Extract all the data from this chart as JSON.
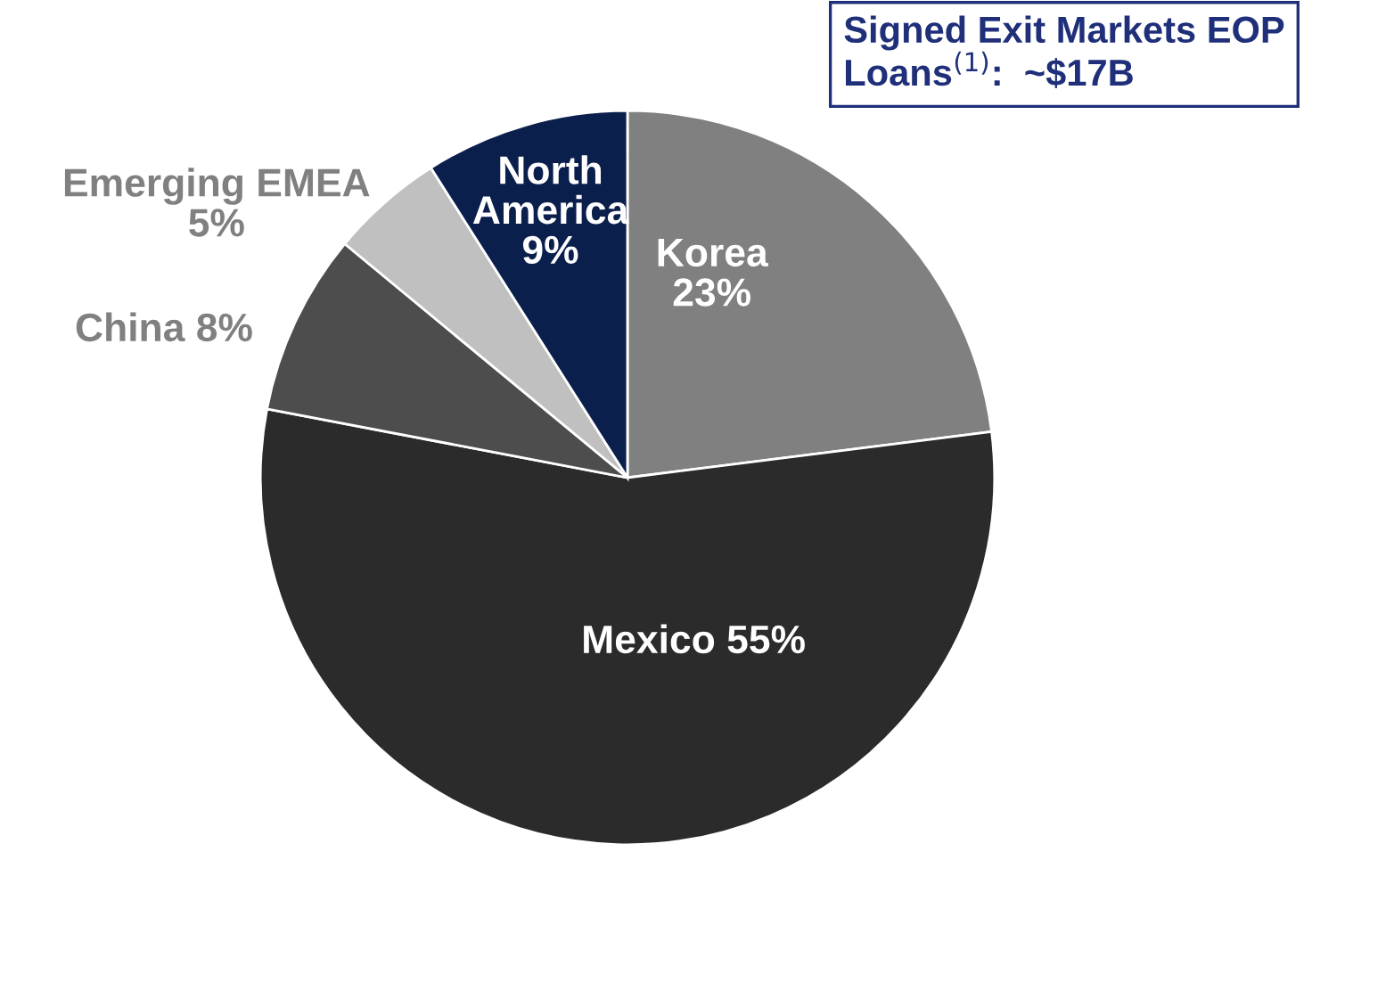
{
  "chart_data": {
    "type": "pie",
    "title": "Signed Exit Markets EOP Loans$^{(1)}$:  ~$17B",
    "categories": [
      "Korea",
      "Mexico",
      "China",
      "Emerging EMEA",
      "North America"
    ],
    "values": [
      23,
      55,
      8,
      5,
      9
    ],
    "value_labels": [
      "23%",
      "55%",
      "8%",
      "5%",
      "9%"
    ],
    "colors": [
      "#808080",
      "#2b2b2b",
      "#4d4d4d",
      "#c0c0c0",
      "#0b1f4d"
    ],
    "legend": false
  }
}
